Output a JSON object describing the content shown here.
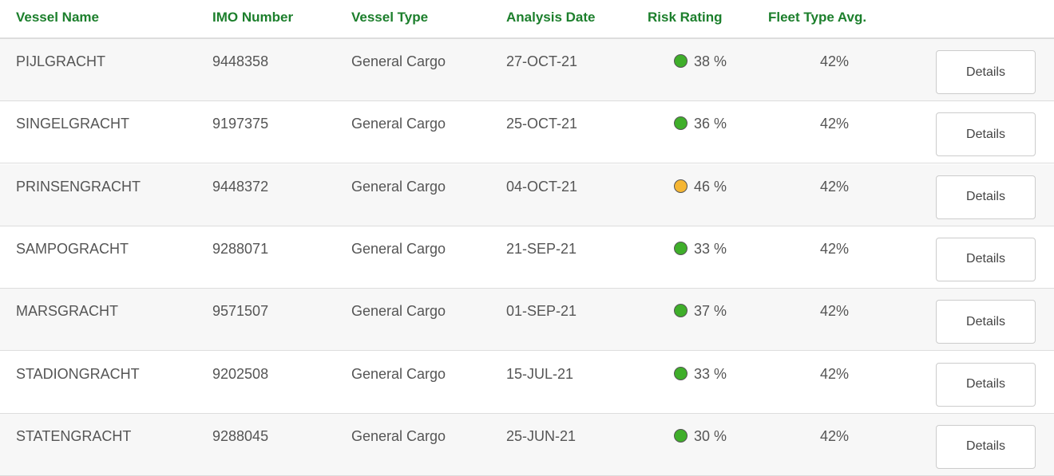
{
  "table": {
    "header": [
      "Vessel Name",
      "IMO Number",
      "Vessel Type",
      "Analysis Date",
      "Risk Rating",
      "Fleet Type Avg."
    ],
    "rows": [
      {
        "vessel_name": "PIJLGRACHT",
        "imo_number": "9448358",
        "vessel_type": "General Cargo",
        "analysis_date": "27-OCT-21",
        "risk_rating": "38 %",
        "risk_color": "#3fae2a",
        "fleet_type_avg": "42%",
        "action": "Details"
      },
      {
        "vessel_name": "SINGELGRACHT",
        "imo_number": "9197375",
        "vessel_type": "General Cargo",
        "analysis_date": "25-OCT-21",
        "risk_rating": "36 %",
        "risk_color": "#3fae2a",
        "fleet_type_avg": "42%",
        "action": "Details"
      },
      {
        "vessel_name": "PRINSENGRACHT",
        "imo_number": "9448372",
        "vessel_type": "General Cargo",
        "analysis_date": "04-OCT-21",
        "risk_rating": "46 %",
        "risk_color": "#f5b634",
        "fleet_type_avg": "42%",
        "action": "Details"
      },
      {
        "vessel_name": "SAMPOGRACHT",
        "imo_number": "9288071",
        "vessel_type": "General Cargo",
        "analysis_date": "21-SEP-21",
        "risk_rating": "33 %",
        "risk_color": "#3fae2a",
        "fleet_type_avg": "42%",
        "action": "Details"
      },
      {
        "vessel_name": "MARSGRACHT",
        "imo_number": "9571507",
        "vessel_type": "General Cargo",
        "analysis_date": "01-SEP-21",
        "risk_rating": "37 %",
        "risk_color": "#3fae2a",
        "fleet_type_avg": "42%",
        "action": "Details"
      },
      {
        "vessel_name": "STADIONGRACHT",
        "imo_number": "9202508",
        "vessel_type": "General Cargo",
        "analysis_date": "15-JUL-21",
        "risk_rating": "33 %",
        "risk_color": "#3fae2a",
        "fleet_type_avg": "42%",
        "action": "Details"
      },
      {
        "vessel_name": "STATENGRACHT",
        "imo_number": "9288045",
        "vessel_type": "General Cargo",
        "analysis_date": "25-JUN-21",
        "risk_rating": "30 %",
        "risk_color": "#3fae2a",
        "fleet_type_avg": "42%",
        "action": "Details"
      }
    ]
  }
}
